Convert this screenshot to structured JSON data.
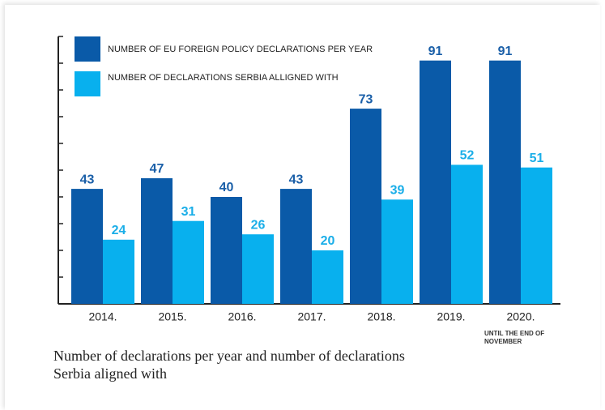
{
  "chart_data": {
    "type": "bar",
    "categories": [
      "2014.",
      "2015.",
      "2016.",
      "2017.",
      "2018.",
      "2019.",
      "2020."
    ],
    "series": [
      {
        "name": "NUMBER OF EU FOREIGN POLICY DECLARATIONS PER YEAR",
        "color": "#0a5aa8",
        "values": [
          43,
          47,
          40,
          43,
          73,
          91,
          91
        ]
      },
      {
        "name": "NUMBER OF DECLARATIONS SERBIA ALLIGNED WITH",
        "color": "#08b0ee",
        "values": [
          24,
          31,
          26,
          20,
          39,
          52,
          51
        ]
      }
    ],
    "annotation": "UNTIL THE END OF NOVEMBER",
    "caption": "Number of declarations per year and number of declarations Serbia aligned with",
    "ylim": [
      0,
      100
    ],
    "yticks": [
      0,
      10,
      20,
      30,
      40,
      50,
      60,
      70,
      80,
      90,
      100
    ]
  }
}
